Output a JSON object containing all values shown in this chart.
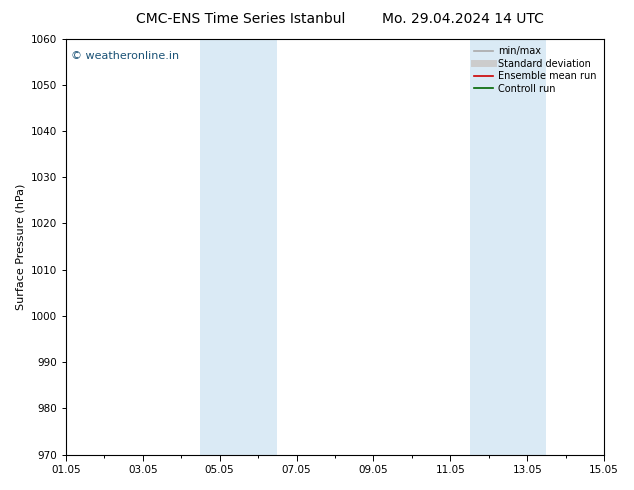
{
  "title_left": "CMC-ENS Time Series Istanbul",
  "title_right": "Mo. 29.04.2024 14 UTC",
  "ylabel": "Surface Pressure (hPa)",
  "ylim": [
    970,
    1060
  ],
  "yticks": [
    970,
    980,
    990,
    1000,
    1010,
    1020,
    1030,
    1040,
    1050,
    1060
  ],
  "xlim_num": [
    0,
    14
  ],
  "xtick_labels": [
    "01.05",
    "03.05",
    "05.05",
    "07.05",
    "09.05",
    "11.05",
    "13.05",
    "15.05"
  ],
  "xtick_positions": [
    0,
    2,
    4,
    6,
    8,
    10,
    12,
    14
  ],
  "shaded_bands": [
    {
      "x_start": 3.5,
      "x_end": 5.5,
      "color": "#daeaf5"
    },
    {
      "x_start": 10.5,
      "x_end": 12.5,
      "color": "#daeaf5"
    }
  ],
  "watermark": "© weatheronline.in",
  "watermark_color": "#1a5276",
  "legend_items": [
    {
      "label": "min/max",
      "color": "#aaaaaa",
      "lw": 1.2,
      "style": "solid"
    },
    {
      "label": "Standard deviation",
      "color": "#cccccc",
      "lw": 5,
      "style": "solid"
    },
    {
      "label": "Ensemble mean run",
      "color": "#cc0000",
      "lw": 1.2,
      "style": "solid"
    },
    {
      "label": "Controll run",
      "color": "#006600",
      "lw": 1.2,
      "style": "solid"
    }
  ],
  "bg_color": "#ffffff",
  "title_fontsize": 10,
  "axis_fontsize": 7.5,
  "ylabel_fontsize": 8,
  "legend_fontsize": 7,
  "watermark_fontsize": 8
}
